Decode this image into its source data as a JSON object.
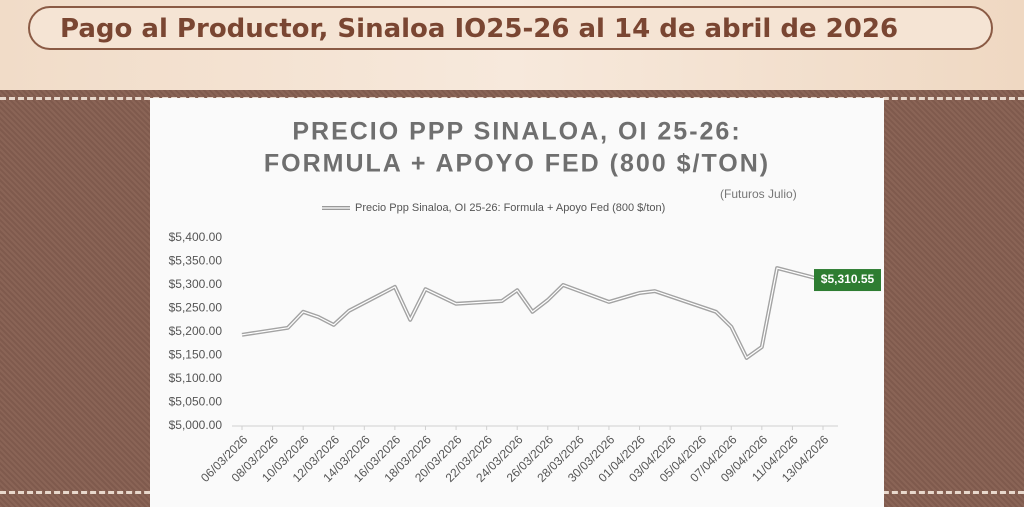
{
  "header": {
    "title": "Pago al Productor, Sinaloa IO25-26 al 14 de abril de 2026"
  },
  "chart_data": {
    "type": "line",
    "title": "PRECIO PPP SINALOA, OI 25-26:",
    "subtitle": "FORMULA + APOYO FED (800 $/TON)",
    "annotation": "(Futuros Julio)",
    "x": [
      "06/03/2026",
      "09/03/2026",
      "10/03/2026",
      "11/03/2026",
      "12/03/2026",
      "13/03/2026",
      "16/03/2026",
      "17/03/2026",
      "18/03/2026",
      "20/03/2026",
      "23/03/2026",
      "24/03/2026",
      "25/03/2026",
      "26/03/2026",
      "27/03/2026",
      "30/03/2026",
      "01/04/2026",
      "02/04/2026",
      "06/04/2026",
      "07/04/2026",
      "08/04/2026",
      "09/04/2026",
      "10/04/2026",
      "13/04/2026"
    ],
    "series": [
      {
        "name": "Precio Ppp Sinaloa, OI 25-26: Formula + Apoyo Fed (800 $/ton)",
        "color": "#a3a3a3",
        "values": [
          5194,
          5209,
          5243,
          5232,
          5215,
          5245,
          5296,
          5226,
          5291,
          5260,
          5266,
          5289,
          5243,
          5268,
          5300,
          5264,
          5283,
          5287,
          5243,
          5211,
          5145,
          5168,
          5336,
          5310.55
        ],
        "value_labels": [
          null,
          null,
          null,
          null,
          null,
          null,
          null,
          null,
          null,
          null,
          null,
          null,
          null,
          null,
          null,
          null,
          null,
          null,
          null,
          null,
          null,
          null,
          null,
          "$5,310.55"
        ]
      }
    ],
    "label_color": "#2e7d32",
    "xlim": [
      "06/03/2026",
      "13/04/2026"
    ],
    "xticks": [
      "06/03/2026",
      "08/03/2026",
      "10/03/2026",
      "12/03/2026",
      "14/03/2026",
      "16/03/2026",
      "18/03/2026",
      "20/03/2026",
      "22/03/2026",
      "24/03/2026",
      "26/03/2026",
      "28/03/2026",
      "30/03/2026",
      "01/04/2026",
      "03/04/2026",
      "05/04/2026",
      "07/04/2026",
      "09/04/2026",
      "11/04/2026",
      "13/04/2026"
    ],
    "ylim": [
      5000,
      5400
    ],
    "yticks": [
      {
        "value": 5000,
        "label": "$5,000.00"
      },
      {
        "value": 5050,
        "label": "$5,050.00"
      },
      {
        "value": 5100,
        "label": "$5,100.00"
      },
      {
        "value": 5150,
        "label": "$5,150.00"
      },
      {
        "value": 5200,
        "label": "$5,200.00"
      },
      {
        "value": 5250,
        "label": "$5,250.00"
      },
      {
        "value": 5300,
        "label": "$5,300.00"
      },
      {
        "value": 5350,
        "label": "$5,350.00"
      },
      {
        "value": 5400,
        "label": "$5,400.00"
      }
    ],
    "grid": false
  }
}
